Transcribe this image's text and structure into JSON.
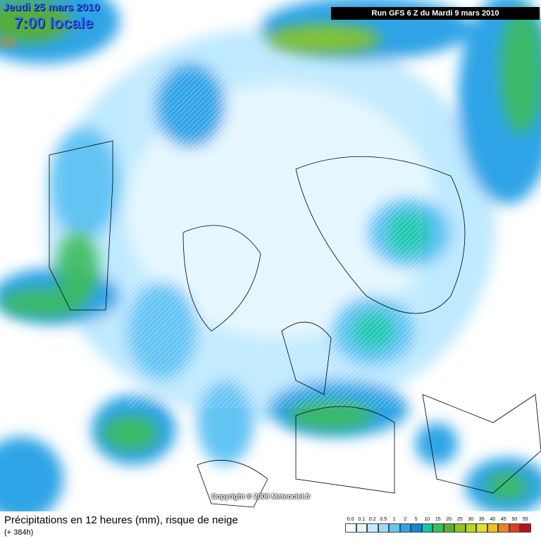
{
  "header": {
    "date": "Jeudi 25 mars 2010",
    "time": "7:00 locale",
    "run": "Run GFS 6 Z du Mardi 9 mars 2010"
  },
  "copyright": "Copyright © 2008 Meteociel.fr",
  "footer": {
    "title": "Précipitations en 12 heures (mm), risque de neige",
    "lead": "(+ 384h)"
  },
  "legend": [
    {
      "label": "0.0",
      "color": "#ffffff"
    },
    {
      "label": "0.1",
      "color": "#e4f6ff"
    },
    {
      "label": "0.2",
      "color": "#c4ecff"
    },
    {
      "label": "0.5",
      "color": "#9adcff"
    },
    {
      "label": "1",
      "color": "#64c4f4"
    },
    {
      "label": "2",
      "color": "#2ea4e6"
    },
    {
      "label": "5",
      "color": "#1584d2"
    },
    {
      "label": "10",
      "color": "#14c8a8"
    },
    {
      "label": "15",
      "color": "#3cbc5c"
    },
    {
      "label": "20",
      "color": "#5cb028"
    },
    {
      "label": "25",
      "color": "#8cc424"
    },
    {
      "label": "30",
      "color": "#bcd420"
    },
    {
      "label": "35",
      "color": "#e4e020"
    },
    {
      "label": "40",
      "color": "#f0c020"
    },
    {
      "label": "45",
      "color": "#ec8424"
    },
    {
      "label": "50",
      "color": "#dc4020"
    },
    {
      "label": "55",
      "color": "#b81414"
    }
  ]
}
